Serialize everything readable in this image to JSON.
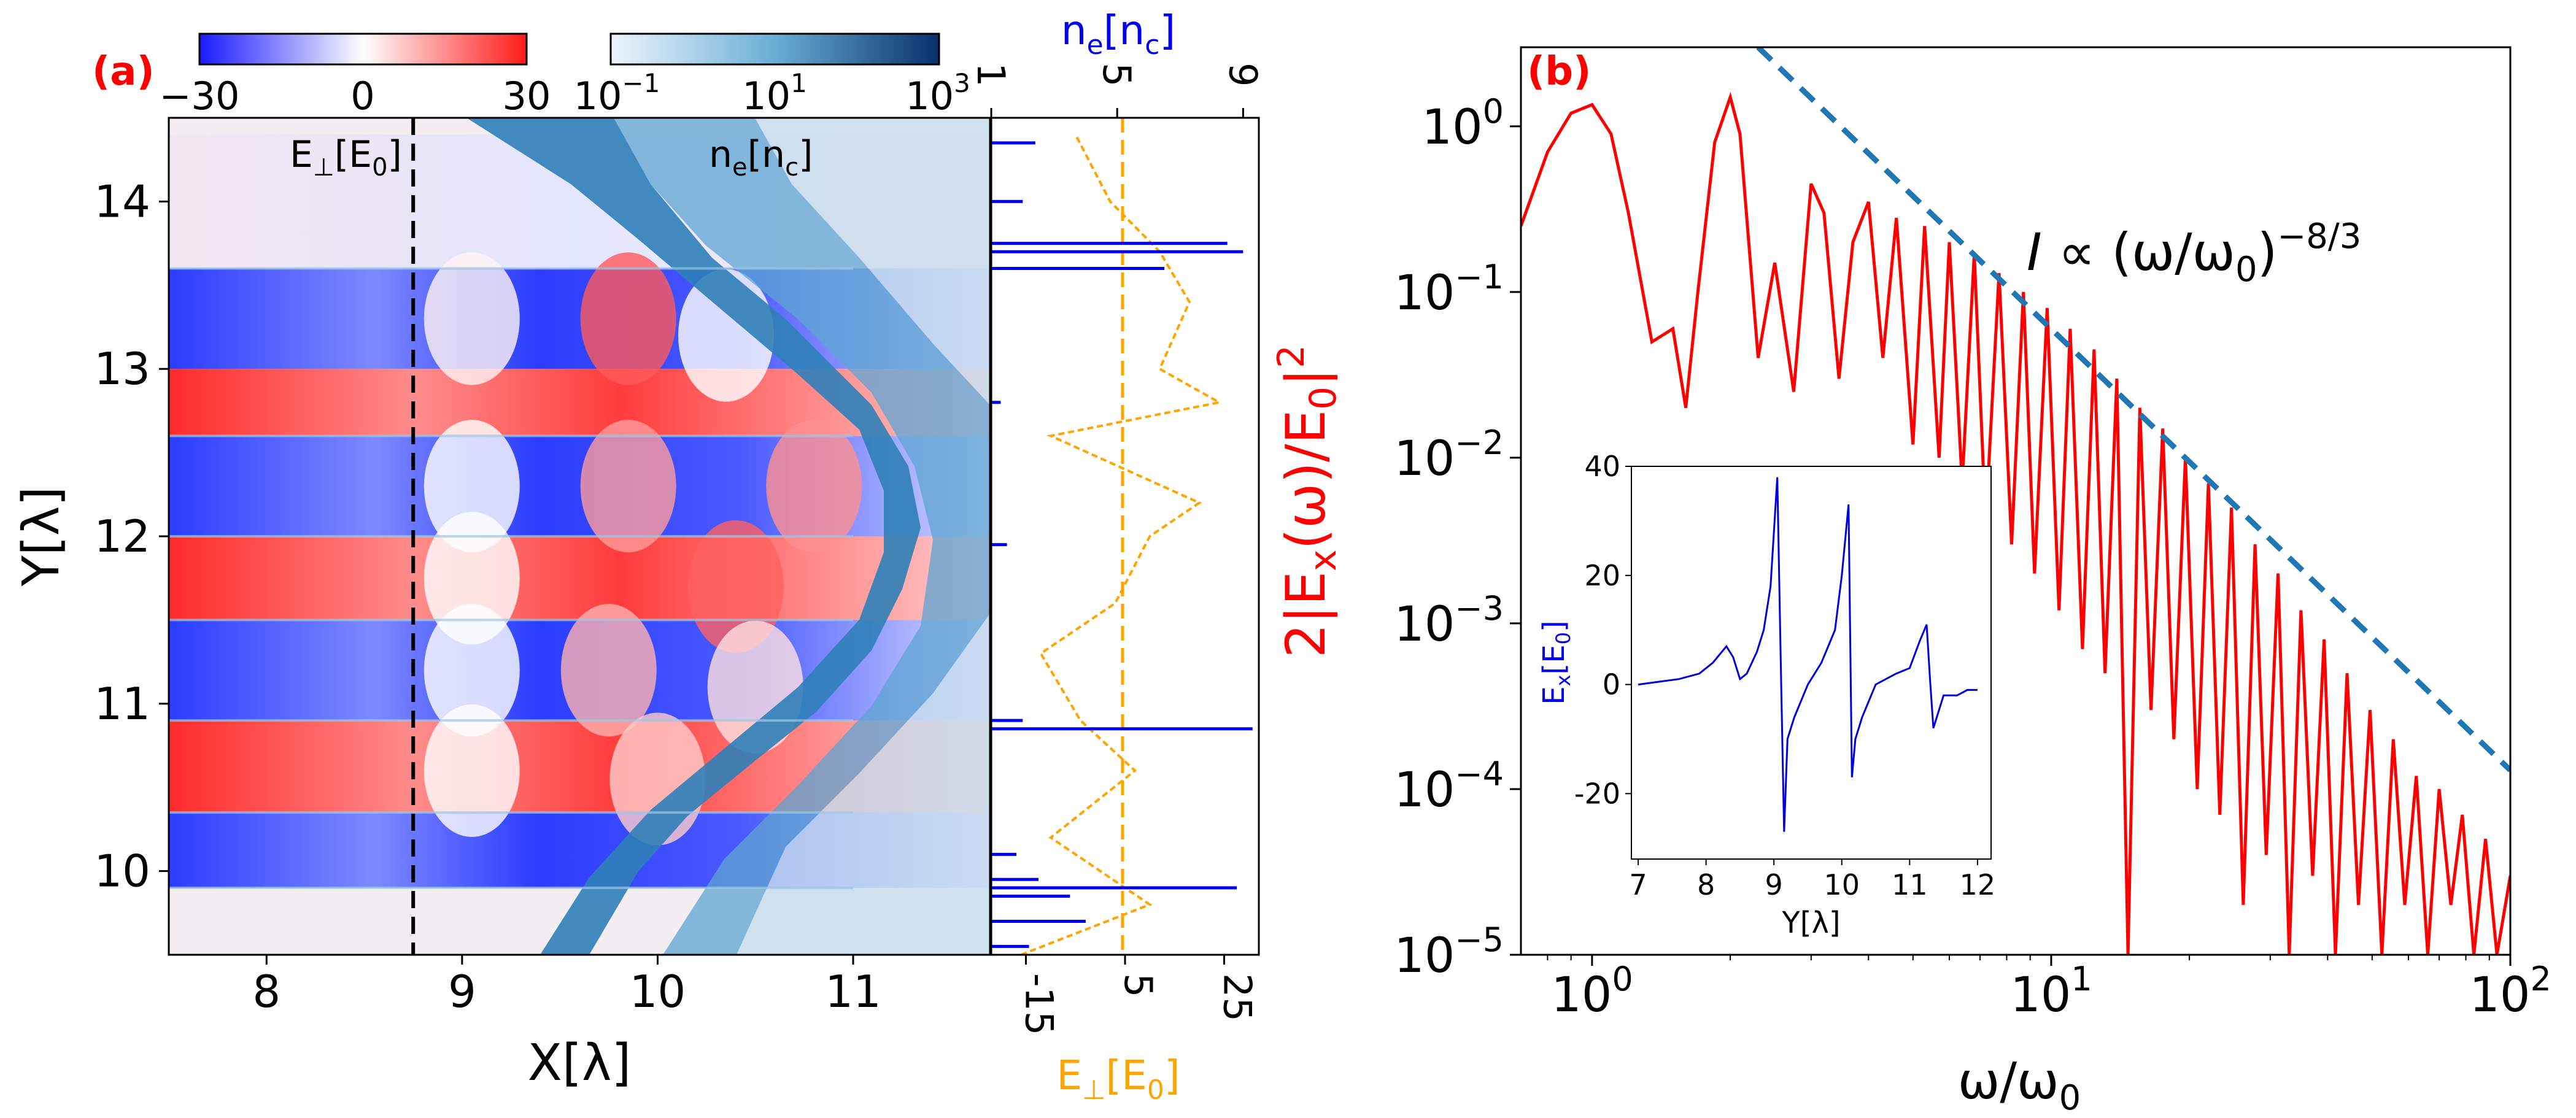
{
  "panel_a": {
    "label": "(a)",
    "colorbar_field": {
      "ticks": [
        "−30",
        "0",
        "30"
      ],
      "range": [
        -30,
        30
      ]
    },
    "colorbar_density": {
      "ticks": [
        "10",
        "10",
        "10"
      ],
      "exps": [
        "−1",
        "1",
        "3"
      ],
      "range_log10": [
        -1,
        3
      ]
    },
    "field_label": "E⊥[E0]",
    "density_label": "ne[nc]",
    "xlabel": "X[λ]",
    "ylabel": "Y[λ]",
    "x_ticks": [
      "8",
      "9",
      "10",
      "11"
    ],
    "y_ticks": [
      "10",
      "11",
      "12",
      "13",
      "14"
    ],
    "xlim": [
      7.5,
      11.7
    ],
    "ylim": [
      9.5,
      14.5
    ],
    "cut_x": 8.75,
    "side": {
      "top_label": "ne[nc]",
      "top_ticks": [
        "1",
        "5",
        "9"
      ],
      "bottom_label": "E⊥[E0]",
      "bottom_ticks": [
        "-15",
        "5",
        "25"
      ]
    }
  },
  "panel_b": {
    "label": "(b)",
    "xlabel": "ω/ω0",
    "ylabel": "2|Ex(ω)/E0|²",
    "annotation": "I ∝ (ω/ω0)^−8/3",
    "x_ticks": [
      "10",
      "10",
      "10"
    ],
    "x_tick_exps": [
      "0",
      "1",
      "2"
    ],
    "y_ticks": [
      "10",
      "10",
      "10",
      "10",
      "10",
      "10"
    ],
    "y_tick_exps": [
      "0",
      "−1",
      "−2",
      "−3",
      "−4",
      "−5"
    ],
    "inset": {
      "xlabel": "Y[λ]",
      "ylabel": "Ex[E0]",
      "x_ticks": [
        "7",
        "8",
        "9",
        "10",
        "11",
        "12"
      ],
      "y_ticks": [
        "40",
        "20",
        "0",
        "-20"
      ]
    }
  },
  "chart_data": [
    {
      "type": "heatmap",
      "panel": "a",
      "xlabel": "X[λ]",
      "ylabel": "Y[λ]",
      "xlim": [
        7.5,
        11.7
      ],
      "ylim": [
        9.5,
        14.5
      ],
      "colorbars": [
        {
          "label": "E⊥[E0]",
          "range": [
            -30,
            30
          ],
          "scale": "linear",
          "colormap": "blue-white-red"
        },
        {
          "label": "ne[nc]",
          "range": [
            0.1,
            1000
          ],
          "scale": "log",
          "colormap": "blues"
        }
      ],
      "field_bands": [
        {
          "y_from": 13.6,
          "y_to": 14.4,
          "sign": "mixed"
        },
        {
          "y_from": 13.0,
          "y_to": 13.6,
          "sign": "negative"
        },
        {
          "y_from": 12.6,
          "y_to": 13.0,
          "sign": "positive"
        },
        {
          "y_from": 12.0,
          "y_to": 12.6,
          "sign": "negative"
        },
        {
          "y_from": 11.5,
          "y_to": 12.0,
          "sign": "positive"
        },
        {
          "y_from": 10.9,
          "y_to": 11.5,
          "sign": "negative"
        },
        {
          "y_from": 10.35,
          "y_to": 10.9,
          "sign": "positive"
        },
        {
          "y_from": 9.9,
          "y_to": 10.35,
          "sign": "negative"
        }
      ],
      "vertical_cut_x": 8.75
    },
    {
      "type": "line",
      "panel": "a-side",
      "series": [
        {
          "name": "ne[nc]",
          "color": "#0000ee",
          "axis": "top",
          "range": [
            1,
            9.5
          ],
          "y": [
            9.55,
            9.7,
            9.85,
            9.9,
            9.95,
            10.1,
            10.85,
            10.9,
            11.95,
            12.8,
            13.6,
            13.7,
            13.75,
            14.0,
            14.35
          ],
          "x": [
            2.2,
            4.0,
            3.5,
            8.8,
            2.5,
            1.8,
            9.3,
            2.0,
            1.5,
            1.3,
            6.5,
            9.0,
            8.5,
            2.0,
            2.4
          ]
        },
        {
          "name": "E⊥[E0]",
          "color": "#ffa500",
          "axis": "bottom",
          "range": [
            -22,
            32
          ],
          "y": [
            9.5,
            9.8,
            10.2,
            10.6,
            10.9,
            11.3,
            11.6,
            12.0,
            12.2,
            12.6,
            12.8,
            13.0,
            13.4,
            13.7,
            14.0,
            14.4
          ],
          "x": [
            -16,
            10,
            -10,
            7,
            -4,
            -12,
            3,
            10,
            20,
            -10,
            24,
            12,
            18,
            12,
            2,
            -5
          ]
        }
      ],
      "dashed_reference": {
        "axis": "bottom",
        "x": 4.5
      }
    },
    {
      "type": "line",
      "panel": "b",
      "xscale": "log",
      "yscale": "log",
      "xlim": [
        0.7,
        100
      ],
      "ylim": [
        1e-05,
        3
      ],
      "xlabel": "ω/ω0",
      "ylabel": "2|Ex(ω)/E0|²",
      "series": [
        {
          "name": "spectrum",
          "color": "#ff0000",
          "x": [
            0.7,
            0.8,
            0.9,
            1.0,
            1.1,
            1.2,
            1.35,
            1.5,
            1.6,
            1.7,
            1.85,
            2.0,
            2.1,
            2.3,
            2.5,
            2.75,
            3.0,
            3.2,
            3.45,
            3.7,
            4.0,
            4.3,
            4.6,
            5.0,
            5.3,
            5.7,
            6.0,
            6.4,
            6.8,
            7.2,
            7.7,
            8.2,
            8.7,
            9.2,
            9.8,
            10.4,
            11.0,
            11.7,
            12.4,
            13.1,
            13.9,
            14.7,
            15.6,
            16.5,
            17.5,
            18.5,
            19.6,
            20.8,
            22.0,
            23.3,
            24.7,
            26.2,
            27.8,
            29.4,
            31.2,
            33.0,
            35.0,
            37.1,
            39.3,
            41.6,
            44.1,
            46.7,
            49.5,
            52.5,
            55.6,
            58.9,
            62.4,
            66.1,
            70.0,
            74.2,
            78.6,
            83.3,
            88.3,
            93.5,
            100
          ],
          "y": [
            0.25,
            0.7,
            1.2,
            1.35,
            0.9,
            0.3,
            0.05,
            0.06,
            0.02,
            0.1,
            0.8,
            1.5,
            0.9,
            0.04,
            0.15,
            0.025,
            0.45,
            0.3,
            0.03,
            0.2,
            0.35,
            0.04,
            0.28,
            0.012,
            0.25,
            0.01,
            0.2,
            0.007,
            0.17,
            0.004,
            0.13,
            0.003,
            0.1,
            0.002,
            0.08,
            0.0012,
            0.06,
            0.0007,
            0.045,
            0.0005,
            0.03,
            1e-05,
            0.02,
            0.0003,
            0.015,
            0.0002,
            0.01,
            0.0001,
            0.007,
            7e-05,
            0.005,
            2e-05,
            0.003,
            4e-05,
            0.002,
            1e-05,
            0.0012,
            3e-05,
            0.0008,
            1e-05,
            0.0005,
            2e-05,
            0.0003,
            1e-05,
            0.0002,
            2e-05,
            0.00012,
            1e-05,
            0.0001,
            2e-05,
            7e-05,
            1e-05,
            5e-05,
            1e-05,
            3e-05
          ]
        },
        {
          "name": "I ∝ (ω/ω0)^−8/3",
          "color": "#1f77b4",
          "style": "dashed",
          "fit": "power_law",
          "exponent": -2.6667,
          "x": [
            2.3,
            100
          ],
          "y": [
            3.0,
            0.00013
          ]
        }
      ]
    },
    {
      "type": "line",
      "panel": "b-inset",
      "xlabel": "Y[λ]",
      "ylabel": "Ex[E0]",
      "xlim": [
        6.9,
        12.2
      ],
      "ylim": [
        -32,
        40
      ],
      "series": [
        {
          "name": "Ex",
          "color": "#0000dd",
          "x": [
            7.0,
            7.3,
            7.6,
            7.9,
            8.1,
            8.3,
            8.4,
            8.5,
            8.6,
            8.75,
            8.85,
            8.95,
            9.05,
            9.1,
            9.15,
            9.2,
            9.3,
            9.5,
            9.7,
            9.9,
            10.0,
            10.1,
            10.15,
            10.2,
            10.3,
            10.5,
            10.8,
            11.0,
            11.15,
            11.25,
            11.3,
            11.35,
            11.5,
            11.7,
            11.85,
            12.0
          ],
          "y": [
            0,
            0.5,
            1,
            2,
            4,
            7,
            5,
            1,
            2,
            6,
            10,
            18,
            38,
            5,
            -27,
            -10,
            -6,
            0,
            4,
            10,
            20,
            33,
            -17,
            -10,
            -6,
            0,
            2,
            3,
            8,
            11,
            1,
            -8,
            -2,
            -2,
            -1,
            -1
          ]
        }
      ]
    }
  ]
}
